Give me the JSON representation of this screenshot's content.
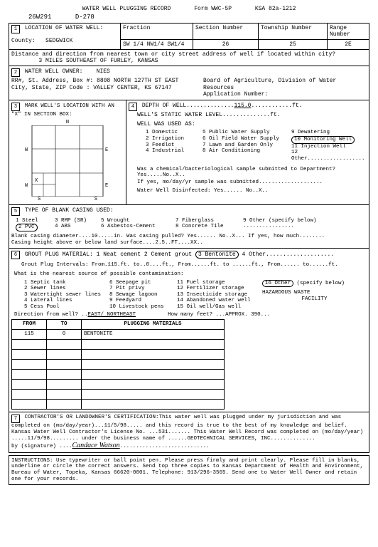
{
  "form": {
    "title": "WATER WELL PLUGGING RECORD",
    "form_no": "Form WWC-5P",
    "ksa": "KSA 82a-1212",
    "id1": "26W291",
    "id2": "D-278"
  },
  "sec1": {
    "label": "LOCATION OF WATER WELL:",
    "fraction_label": "Fraction",
    "fraction_value": "SW 1/4 NW1/4 SW1/4",
    "section_label": "Section  Number",
    "section_value": "26",
    "township_label": "Township  Number",
    "township_value": "25",
    "range_label": "Range Number",
    "range_value": "2E",
    "county_label": "County:",
    "county_value": "SEDGWICK",
    "dist_label": "Distance and direction from nearest town or city street address of well if located within city?",
    "dist_value": "3 MILES   SOUTHEAST OF FURLEY, KANSAS"
  },
  "sec2": {
    "label": "WATER WELL OWNER:",
    "owner": "NIES",
    "addr_label": "RR#, St. Address, Box #:",
    "addr_value": "8808 NORTH 127TH ST EAST",
    "city_label": "City, State, ZIP Code  :",
    "city_value": "VALLEY CENTER, KS 67147",
    "board_label": "Board of Agriculture, Division of Water Resources",
    "appno_label": "Application Number:"
  },
  "sec3": {
    "label": "MARK WELL'S LOCATION WITH AN \"X\" IN SECTION BOX:"
  },
  "sec4": {
    "depth_label": "DEPTH OF WELL..............",
    "depth_value": "115.0",
    "depth_unit": "............ft.",
    "static_label": "WELL'S STATIC WATER LEVEL..............ft.",
    "used_label": "WELL WAS USED AS:",
    "uses": {
      "c1": [
        "1 Domestic",
        "2 Irrigation",
        "3 Feedlot",
        "4 Industrial"
      ],
      "c2": [
        "5 Public Water Supply",
        "6 Oil Field Water Supply",
        "7 Lawn and Garden Only",
        "8 Air Conditioning"
      ],
      "c3": [
        "9 Dewatering",
        "10 Monitoring Well",
        "11 Injection Well",
        "12 Other.................."
      ]
    },
    "chem1": "Was a chemical/bacteriological sample submitted to Department? Yes.....No..X..",
    "chem2": "If yes, mo/day/yr sample was submitted....................",
    "disinf": "Water Well Disinfected:  Yes......  No..X.."
  },
  "sec5": {
    "label": "TYPE OF BLANK CASING USED:",
    "opts_c1": [
      "1 Steel",
      "2 PVC"
    ],
    "opts_c2": [
      "3 RMP (SR)",
      "4 ABS"
    ],
    "opts_c3": [
      "5 Wrought",
      "6 Asbestos-Cement"
    ],
    "opts_c4": [
      "7 Fiberglass",
      "8 Concrete Tile"
    ],
    "opts_c5": [
      "9 Other (specify below)",
      "................"
    ],
    "line1": "Blank casing diameter....10.....in.    Was casing pulled?  Yes......  No..X... If yes, how much........",
    "line2": "Casing height above or below land surface....2.5..FT....XX.."
  },
  "sec6": {
    "label": "GROUT PLUG MATERIAL:  1 Neat cement     2 Cement grout     ",
    "bent": "3 Bentonite",
    "other": "  4 Other....................",
    "intervals": "Grout Plug Intervals:    From.115.ft.  to..0....ft.,   From......ft.  to ......ft.,  From......  to......ft.",
    "source_label": "What is the nearest source of possible contamination:",
    "s_c1": [
      "1 Septic tank",
      "2 Sewer lines",
      "3 Watertight sewer lines",
      "4 Lateral lines",
      "5 Cess Pool"
    ],
    "s_c2": [
      "6 Seepage pit",
      "7 Pit privy",
      "8 Sewage lagoon",
      "9 Feedyard",
      "10 Livestock pens"
    ],
    "s_c3": [
      "11 Fuel storage",
      "12 Fertilizer storage",
      "13 Insecticide storage",
      "14 Abandoned water well",
      "15 Oil well/Gas well"
    ],
    "s_c4_pre": "16 Other",
    "s_c4_post": "(specify below)",
    "s_c4_lines": [
      "HAZARDOUS WASTE",
      "FACILITY"
    ],
    "dir_label": "Direction from well? ..",
    "dir_value": "EAST/  NORTHEAST",
    "feet_label": "How many feet?  ...",
    "feet_value": "APPROX. 390...",
    "plugtbl": {
      "h1": "FROM",
      "h2": "TO",
      "h3": "PLUGGING MATERIALS",
      "row1": {
        "from": "115",
        "to": "0",
        "mat": "BENTONITE"
      },
      "empty_rows": 7
    }
  },
  "sec7": {
    "text1": "CONTRACTOR'S OR LANDOWNER'S CERTIFICATION:This water well was plugged under my jurisdiction and was completed on (mo/day/year)...11/5/98..... and this record is true to the best of my knowledge and belief.  Kansas Water Well Contractor's License No. ...531.......  This Water Well Record was completed on (mo/day/year) .....11/9/98......... under the business name of ......GEOTECHNICAL SERVICES, INC..............",
    "sig_label": "by (signature) ....",
    "sig_value": "Candace Watson",
    "sig_dots": "............................"
  },
  "instructions": "INSTRUCTIONS:  Use typewriter or ball point pen.  Please press firmly and print clearly.  Please fill in blanks, underline or circle the correct answers.  Send top three copies to Kansas Department of Health and Environment, Bureau of Water, Topeka, Kansas  66620-0001.  Telephone:  913/296-3565.  Send one to Water Well Owner and retain one for your records."
}
